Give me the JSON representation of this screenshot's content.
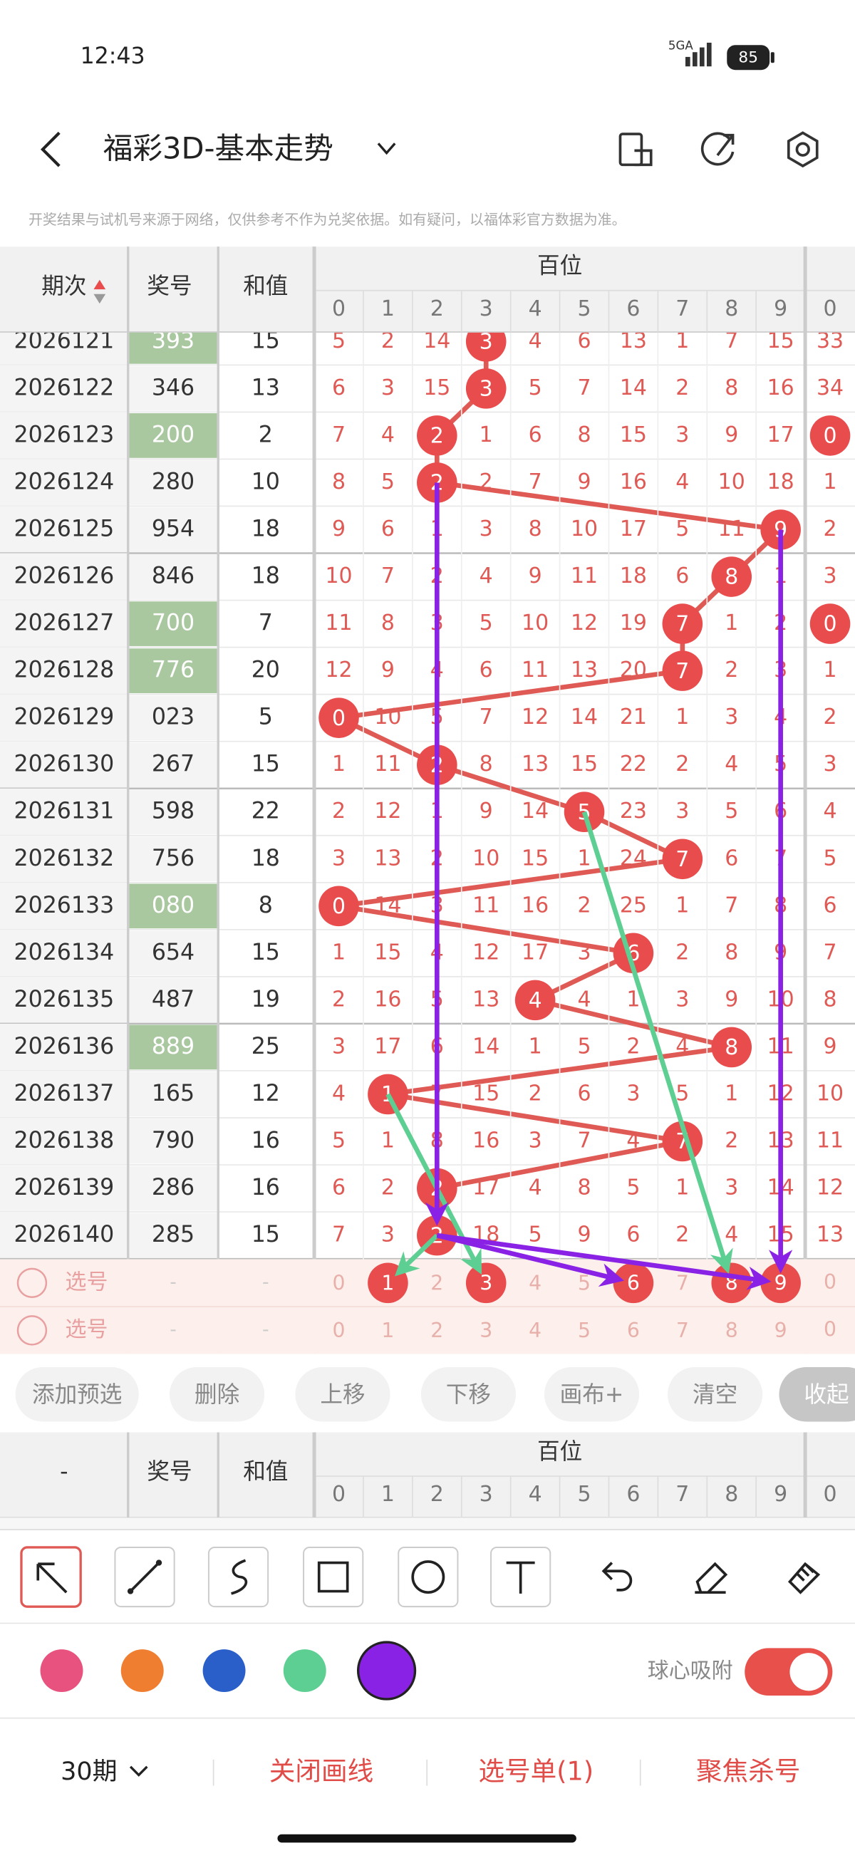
{
  "status_bar": {
    "time": "12:43",
    "network": "5GA",
    "battery": "85"
  },
  "header": {
    "title": "福彩3D-基本走势"
  },
  "disclaimer": "开奖结果与试机号来源于网络，仅供参考不作为兑奖依据。如有疑问，以福体彩官方数据为准。",
  "table": {
    "columns": [
      "期次",
      "奖号",
      "和值"
    ],
    "group": "百位",
    "digits": [
      0,
      1,
      2,
      3,
      4,
      5,
      6,
      7,
      8,
      9
    ],
    "next_digit": 0,
    "rows": [
      {
        "period": "2026121",
        "number": "393",
        "sum": 15,
        "cells": [
          5,
          2,
          14,
          3,
          4,
          6,
          13,
          1,
          7,
          15
        ],
        "next": 33
      },
      {
        "period": "2026122",
        "number": "346",
        "sum": 13,
        "cells": [
          6,
          3,
          15,
          3,
          5,
          7,
          14,
          2,
          8,
          16
        ],
        "next": 34
      },
      {
        "period": "2026123",
        "number": "200",
        "sum": 2,
        "cells": [
          7,
          4,
          2,
          1,
          6,
          8,
          15,
          3,
          9,
          17
        ],
        "next": 0
      },
      {
        "period": "2026124",
        "number": "280",
        "sum": 10,
        "cells": [
          8,
          5,
          2,
          2,
          7,
          9,
          16,
          4,
          10,
          18
        ],
        "next": 1
      },
      {
        "period": "2026125",
        "number": "954",
        "sum": 18,
        "cells": [
          9,
          6,
          1,
          3,
          8,
          10,
          17,
          5,
          11,
          9
        ],
        "next": 2
      },
      {
        "period": "2026126",
        "number": "846",
        "sum": 18,
        "cells": [
          10,
          7,
          2,
          4,
          9,
          11,
          18,
          6,
          8,
          1
        ],
        "next": 3
      },
      {
        "period": "2026127",
        "number": "700",
        "sum": 7,
        "cells": [
          11,
          8,
          3,
          5,
          10,
          12,
          19,
          7,
          1,
          2
        ],
        "next": 0
      },
      {
        "period": "2026128",
        "number": "776",
        "sum": 20,
        "cells": [
          12,
          9,
          4,
          6,
          11,
          13,
          20,
          7,
          2,
          3
        ],
        "next": 1
      },
      {
        "period": "2026129",
        "number": "023",
        "sum": 5,
        "cells": [
          0,
          10,
          5,
          7,
          12,
          14,
          21,
          1,
          3,
          4
        ],
        "next": 2
      },
      {
        "period": "2026130",
        "number": "267",
        "sum": 15,
        "cells": [
          1,
          11,
          2,
          8,
          13,
          15,
          22,
          2,
          4,
          5
        ],
        "next": 3
      },
      {
        "period": "2026131",
        "number": "598",
        "sum": 22,
        "cells": [
          2,
          12,
          1,
          9,
          14,
          5,
          23,
          3,
          5,
          6
        ],
        "next": 4
      },
      {
        "period": "2026132",
        "number": "756",
        "sum": 18,
        "cells": [
          3,
          13,
          2,
          10,
          15,
          1,
          24,
          7,
          6,
          7
        ],
        "next": 5
      },
      {
        "period": "2026133",
        "number": "080",
        "sum": 8,
        "cells": [
          0,
          14,
          3,
          11,
          16,
          2,
          25,
          1,
          7,
          8
        ],
        "next": 6
      },
      {
        "period": "2026134",
        "number": "654",
        "sum": 15,
        "cells": [
          1,
          15,
          4,
          12,
          17,
          3,
          6,
          2,
          8,
          9
        ],
        "next": 7
      },
      {
        "period": "2026135",
        "number": "487",
        "sum": 19,
        "cells": [
          2,
          16,
          5,
          13,
          4,
          4,
          1,
          3,
          9,
          10
        ],
        "next": 8
      },
      {
        "period": "2026136",
        "number": "889",
        "sum": 25,
        "cells": [
          3,
          17,
          6,
          14,
          1,
          5,
          2,
          4,
          8,
          11
        ],
        "next": 9
      },
      {
        "period": "2026137",
        "number": "165",
        "sum": 12,
        "cells": [
          4,
          1,
          7,
          15,
          2,
          6,
          3,
          5,
          1,
          12
        ],
        "next": 10
      },
      {
        "period": "2026138",
        "number": "790",
        "sum": 16,
        "cells": [
          5,
          1,
          8,
          16,
          3,
          7,
          4,
          7,
          2,
          13
        ],
        "next": 11
      },
      {
        "period": "2026139",
        "number": "286",
        "sum": 16,
        "cells": [
          6,
          2,
          2,
          17,
          4,
          8,
          5,
          1,
          3,
          14
        ],
        "next": 12
      },
      {
        "period": "2026140",
        "number": "285",
        "sum": 15,
        "cells": [
          7,
          3,
          2,
          18,
          5,
          9,
          6,
          2,
          4,
          15
        ],
        "next": 13
      }
    ],
    "selection_rows": [
      {
        "label": "选号",
        "number": "-",
        "sum": "-",
        "cells": [
          0,
          1,
          2,
          3,
          4,
          5,
          6,
          7,
          8,
          9
        ],
        "next": 0,
        "selected": [
          1,
          3,
          6,
          8,
          9
        ]
      },
      {
        "label": "选号",
        "number": "-",
        "sum": "-",
        "cells": [
          0,
          1,
          2,
          3,
          4,
          5,
          6,
          7,
          8,
          9
        ],
        "next": 0,
        "selected": []
      }
    ],
    "sub_header_first": "-"
  },
  "buttons": [
    "添加预选",
    "删除",
    "上移",
    "下移",
    "画布+",
    "清空",
    "收起"
  ],
  "palette": [
    "#e8527e",
    "#f07e30",
    "#2a5ec8",
    "#5ecf92",
    "#8a22e6"
  ],
  "toggle_label": "球心吸附",
  "footer": {
    "period_count": "30期",
    "items": [
      "关闭画线",
      "选号单(1)",
      "聚焦杀号"
    ]
  }
}
